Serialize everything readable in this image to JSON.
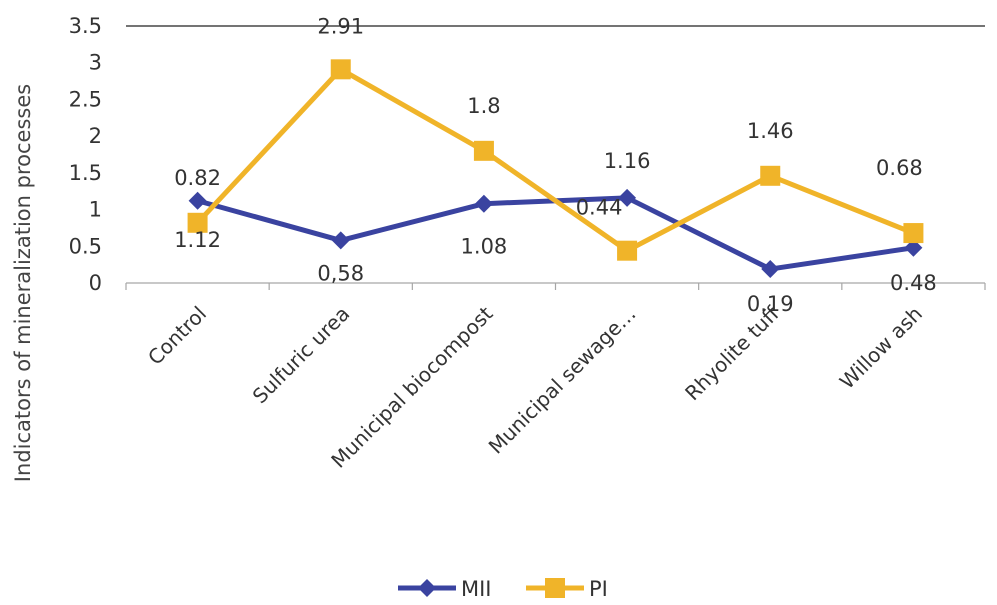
{
  "chart_data": {
    "type": "line",
    "title": "",
    "xlabel": "",
    "ylabel": "Indicators of mineralization processes",
    "ylim": [
      0,
      3.5
    ],
    "yticks": [
      "0",
      "0.5",
      "1",
      "1.5",
      "2",
      "2.5",
      "3",
      "3.5"
    ],
    "categories": [
      "Control",
      "Sulfuric urea",
      "Municipal biocompost",
      "Municipal sewage…",
      "Rhyolite tuff",
      "Willow ash"
    ],
    "series": [
      {
        "name": "MII",
        "color": "#3a43a0",
        "marker": "diamond",
        "values": [
          1.12,
          0.58,
          1.08,
          1.16,
          0.19,
          0.48
        ],
        "labels": [
          "1.12",
          "0,58",
          "1.08",
          "1.16",
          "0.19",
          "0.48"
        ]
      },
      {
        "name": "PI",
        "color": "#f0b429",
        "marker": "square",
        "values": [
          0.82,
          2.91,
          1.8,
          0.44,
          1.46,
          0.68
        ],
        "labels": [
          "0.82",
          "2.91",
          "1.8",
          "0.44",
          "1.46",
          "0.68"
        ]
      }
    ],
    "gridlines": "top-only",
    "legend_position": "bottom-center"
  }
}
